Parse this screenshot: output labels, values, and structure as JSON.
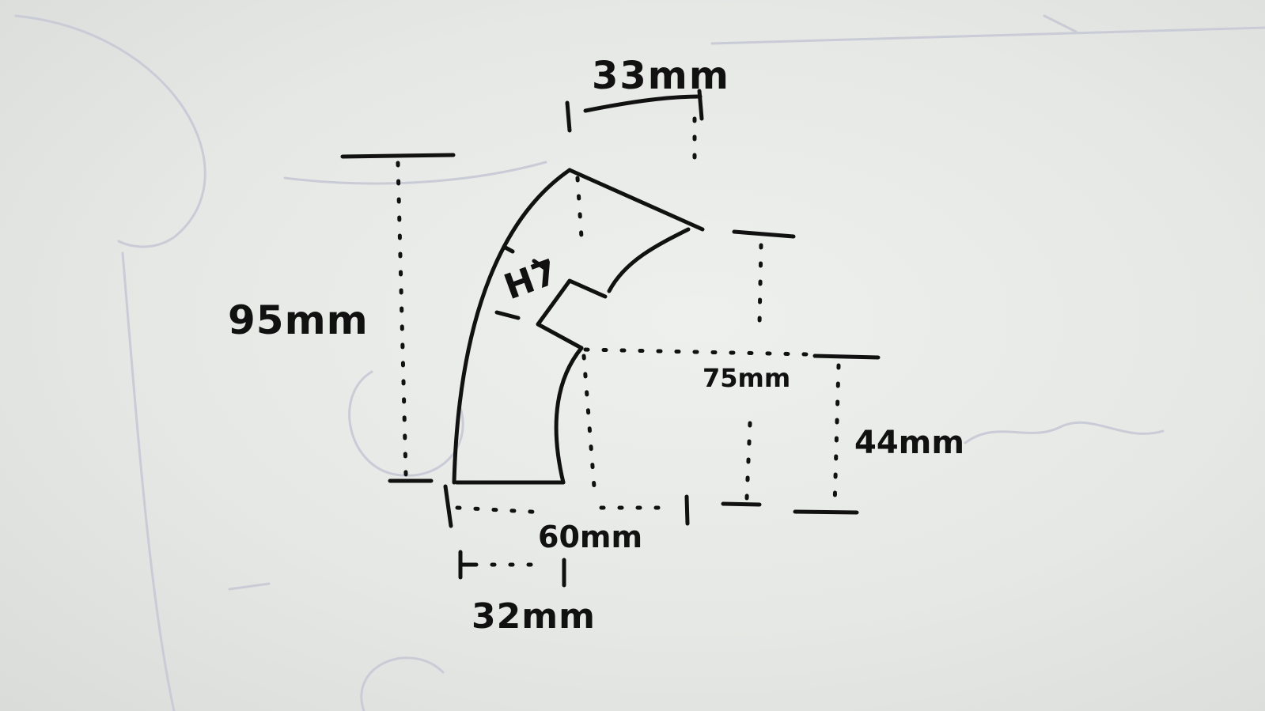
{
  "labels": {
    "top_width": "33mm",
    "total_height": "95mm",
    "slot": "H7",
    "right_height_a": "75mm",
    "right_height_b": "44mm",
    "bottom_width_a": "60mm",
    "bottom_width_b": "32mm"
  },
  "colors": {
    "ink": "#111111",
    "board": "#e6e8e5",
    "ghost": "#c9ccd6"
  }
}
